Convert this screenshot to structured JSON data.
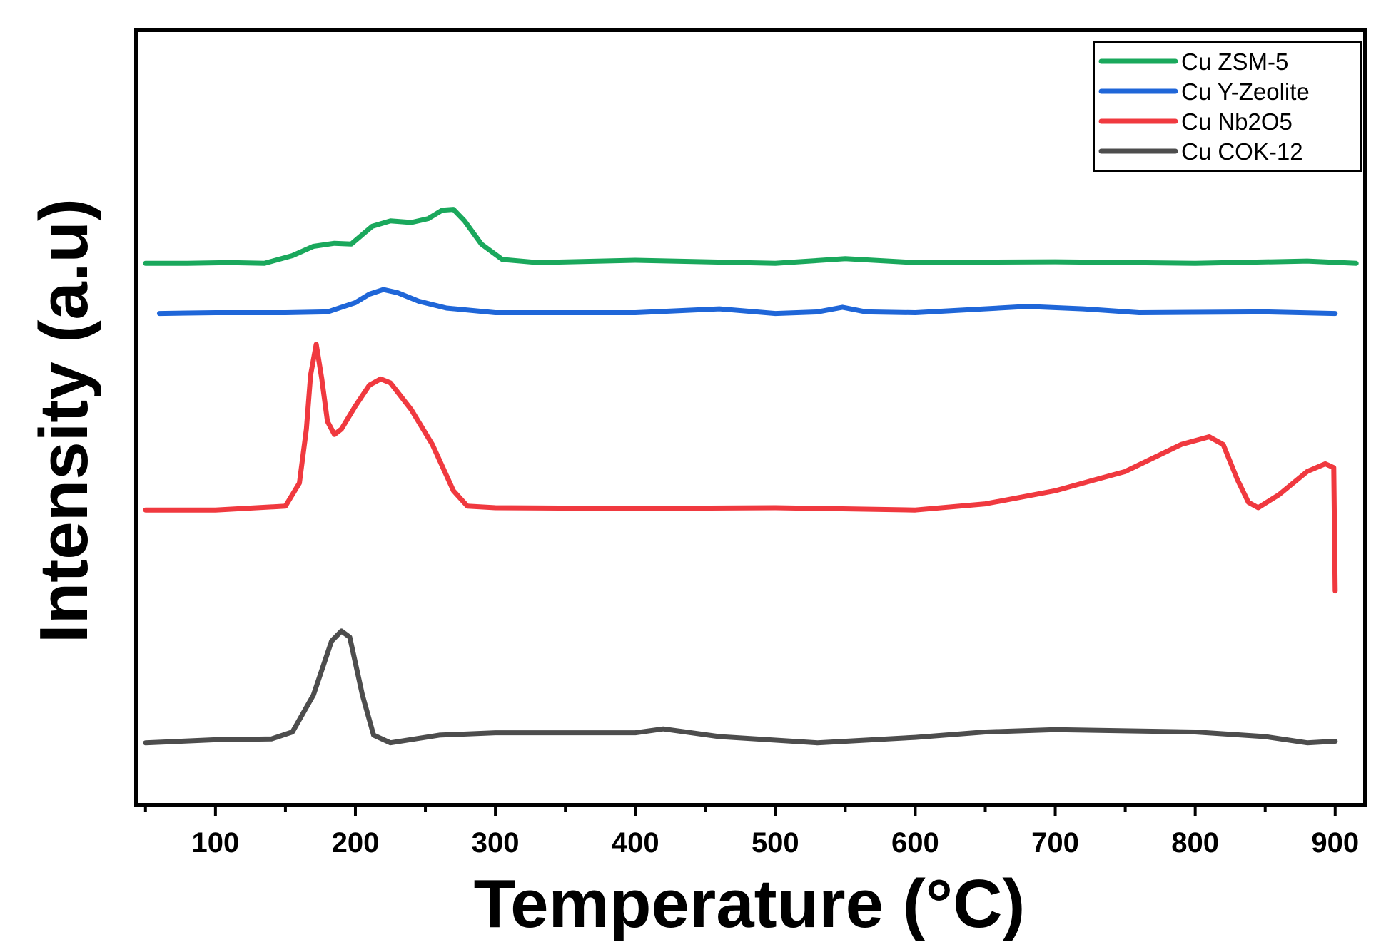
{
  "chart_data": {
    "type": "line",
    "title": "",
    "xlabel": "Temperature (°C)",
    "ylabel": "Intensity (a.u)",
    "xlim": [
      45,
      920
    ],
    "ylim": [
      0,
      100
    ],
    "x_major_ticks": [
      100,
      200,
      300,
      400,
      500,
      600,
      700,
      800,
      900
    ],
    "x_tick_labels": [
      "100",
      "200",
      "300",
      "400",
      "500",
      "600",
      "700",
      "800",
      "900"
    ],
    "y_ticks_shown": false,
    "grid": false,
    "legend_position": "top-right",
    "series": [
      {
        "name": "Cu ZSM-5",
        "color": "#1aa85c",
        "x": [
          50,
          80,
          110,
          135,
          155,
          170,
          185,
          197,
          212,
          225,
          240,
          252,
          262,
          270,
          278,
          290,
          305,
          330,
          400,
          450,
          500,
          550,
          600,
          700,
          800,
          880,
          915
        ],
        "y": [
          70.0,
          70.0,
          70.1,
          70.0,
          71.0,
          72.2,
          72.6,
          72.5,
          74.8,
          75.5,
          75.3,
          75.8,
          76.9,
          77.0,
          75.5,
          72.5,
          70.5,
          70.1,
          70.4,
          70.2,
          70.0,
          70.6,
          70.1,
          70.2,
          70.0,
          70.3,
          70.0
        ]
      },
      {
        "name": "Cu Y-Zeolite",
        "color": "#1f66d8",
        "x": [
          60,
          100,
          150,
          180,
          200,
          210,
          220,
          230,
          245,
          265,
          300,
          400,
          460,
          500,
          530,
          548,
          565,
          600,
          680,
          720,
          760,
          850,
          900
        ],
        "y": [
          63.5,
          63.6,
          63.6,
          63.7,
          64.9,
          66.0,
          66.6,
          66.2,
          65.1,
          64.2,
          63.6,
          63.6,
          64.1,
          63.5,
          63.7,
          64.3,
          63.7,
          63.6,
          64.4,
          64.1,
          63.6,
          63.7,
          63.5
        ]
      },
      {
        "name": "Cu Nb2O5",
        "color": "#f0393f",
        "x": [
          50,
          100,
          150,
          160,
          165,
          168,
          172,
          176,
          180,
          185,
          190,
          200,
          210,
          218,
          225,
          240,
          255,
          270,
          280,
          300,
          400,
          500,
          600,
          650,
          700,
          750,
          790,
          810,
          820,
          830,
          838,
          845,
          860,
          880,
          893,
          899,
          900
        ],
        "y": [
          38.0,
          38.0,
          38.5,
          41.5,
          48.5,
          55.5,
          59.5,
          55.0,
          49.5,
          47.8,
          48.5,
          51.5,
          54.2,
          55.0,
          54.5,
          51.0,
          46.5,
          40.5,
          38.5,
          38.3,
          38.2,
          38.3,
          38.0,
          38.8,
          40.5,
          43.0,
          46.5,
          47.5,
          46.5,
          42.0,
          39.0,
          38.3,
          40.0,
          43.0,
          44.0,
          43.5,
          27.5
        ]
      },
      {
        "name": "Cu COK-12",
        "color": "#4d4d4d",
        "x": [
          50,
          100,
          140,
          155,
          170,
          183,
          190,
          196,
          205,
          213,
          225,
          260,
          300,
          400,
          420,
          460,
          530,
          600,
          650,
          700,
          800,
          850,
          880,
          900
        ],
        "y": [
          7.8,
          8.2,
          8.3,
          9.2,
          14.0,
          21.0,
          22.3,
          21.5,
          14.0,
          8.8,
          7.8,
          8.8,
          9.1,
          9.1,
          9.6,
          8.6,
          7.8,
          8.5,
          9.2,
          9.5,
          9.2,
          8.6,
          7.8,
          8.0
        ]
      }
    ]
  }
}
